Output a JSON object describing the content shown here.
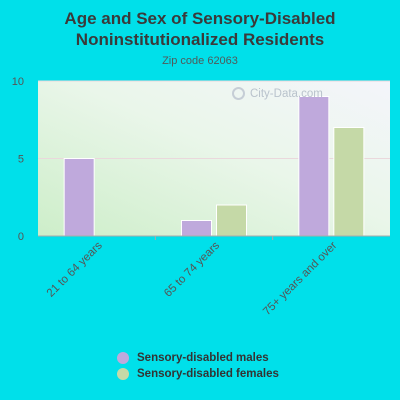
{
  "title_line1": "Age and Sex of Sensory-Disabled",
  "title_line2": "Noninstitutionalized Residents",
  "subtitle": "Zip code 62063",
  "watermark": "City-Data.com",
  "colors": {
    "background": "#00e0ea",
    "males": "#bfa9dc",
    "females": "#c5d9a7"
  },
  "chart_data": {
    "type": "bar",
    "title": "Age and Sex of Sensory-Disabled Noninstitutionalized Residents",
    "subtitle": "Zip code 62063",
    "categories": [
      "21 to 64 years",
      "65 to 74 years",
      "75+ years and over"
    ],
    "series": [
      {
        "name": "Sensory-disabled males",
        "values": [
          5,
          1,
          9
        ]
      },
      {
        "name": "Sensory-disabled females",
        "values": [
          0,
          2,
          7
        ]
      }
    ],
    "ylim": [
      0,
      10
    ],
    "yticks": [
      "0",
      "5",
      "10"
    ],
    "grid": true,
    "legend": "bottom"
  }
}
